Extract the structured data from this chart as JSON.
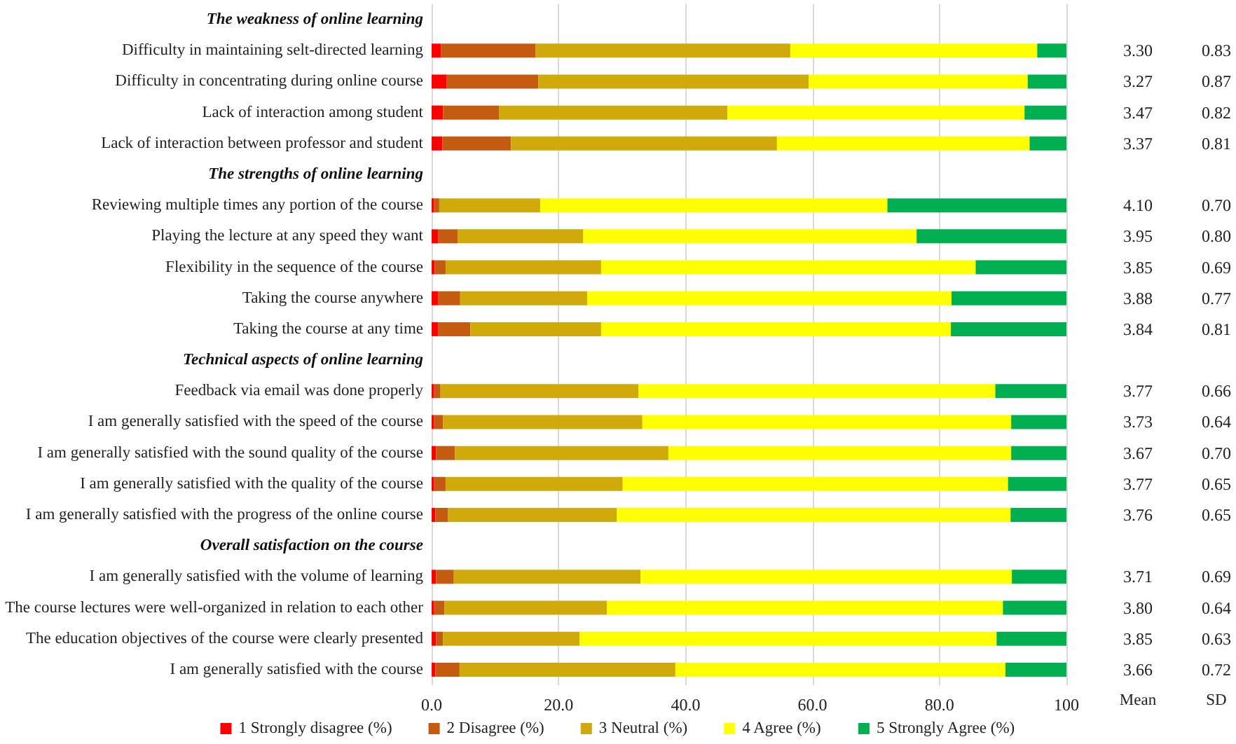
{
  "chart_data": {
    "type": "bar",
    "orientation": "horizontal",
    "stacked": true,
    "categories": [
      "The weakness of online learning",
      "Difficulty in maintaining selt-directed learning",
      "Difficulty in concentrating during online course",
      "Lack of interaction among student",
      "Lack of interaction between professor and student",
      "The strengths of online learning",
      "Reviewing multiple times any portion of the course",
      "Playing the lecture at any speed they want",
      "Flexibility in the sequence of the course",
      "Taking the course anywhere",
      "Taking the course at any time",
      "Technical aspects of online learning",
      "Feedback via email was done properly",
      "I am generally satisfied with the speed of the course",
      "I am generally satisfied with the sound quality of the course",
      "I am generally satisfied with the quality of the course",
      "I am generally satisfied with the progress of the online course",
      "Overall satisfaction on the course",
      "I am generally satisfied with the volume of learning",
      "The course lectures were well-organized in relation to each other",
      "The education objectives of the course were clearly presented",
      "I am generally satisfied with the course"
    ],
    "series": [
      {
        "name": "1 Strongly disagree (%)",
        "color": "#ff0000",
        "values": [
          null,
          1.5,
          2.4,
          1.8,
          1.7,
          null,
          0.4,
          1.0,
          0.5,
          1.0,
          1.0,
          null,
          0.4,
          0.4,
          0.7,
          0.4,
          0.6,
          null,
          0.7,
          0.4,
          0.7,
          0.6
        ]
      },
      {
        "name": "2 Disagree (%)",
        "color": "#c55a11",
        "values": [
          null,
          14.9,
          14.4,
          8.8,
          10.8,
          null,
          0.8,
          3.1,
          1.7,
          3.5,
          5.1,
          null,
          1.0,
          1.4,
          3.0,
          1.8,
          2.0,
          null,
          2.8,
          1.6,
          1.1,
          3.8
        ]
      },
      {
        "name": "3 Neutral (%)",
        "color": "#d0aa0a",
        "values": [
          null,
          40.1,
          42.6,
          36.0,
          41.9,
          null,
          15.9,
          19.8,
          24.5,
          20.0,
          20.6,
          null,
          31.2,
          31.4,
          33.6,
          27.9,
          26.6,
          null,
          29.4,
          25.6,
          21.5,
          34.0
        ]
      },
      {
        "name": "4 Agree (%)",
        "color": "#ffff00",
        "values": [
          null,
          38.9,
          34.5,
          46.8,
          39.8,
          null,
          54.7,
          52.5,
          59.0,
          57.4,
          55.1,
          null,
          56.2,
          58.1,
          54.0,
          60.7,
          62.0,
          null,
          58.5,
          62.4,
          65.7,
          52.0
        ]
      },
      {
        "name": "5 Strongly Agree (%)",
        "color": "#00b050",
        "values": [
          null,
          4.6,
          6.1,
          6.6,
          5.8,
          null,
          28.2,
          23.6,
          14.3,
          18.1,
          18.2,
          null,
          11.2,
          8.7,
          8.7,
          9.2,
          8.8,
          null,
          8.6,
          10.0,
          11.0,
          9.6
        ]
      }
    ],
    "xlim": [
      0,
      100
    ],
    "xticks": [
      {
        "value": 0,
        "label": "0.0"
      },
      {
        "value": 20,
        "label": "20.0"
      },
      {
        "value": 40,
        "label": "40.0"
      },
      {
        "value": 60,
        "label": "60.0"
      },
      {
        "value": 80,
        "label": "80.0"
      },
      100
    ],
    "grid": "x",
    "legend": "bottom",
    "annotations": [
      "Mean",
      "SD",
      "3.30",
      "0.83",
      "3.27",
      "0.87",
      "3.47",
      "0.82",
      "3.37",
      "0.81",
      "4.10",
      "0.70",
      "3.95",
      "0.80",
      "3.85",
      "0.69",
      "3.88",
      "0.77",
      "3.84",
      "0.81",
      "3.77",
      "0.66",
      "3.73",
      "0.64",
      "3.67",
      "0.70",
      "3.77",
      "0.65",
      "3.76",
      "0.65",
      "3.71",
      "0.69",
      "3.80",
      "0.64",
      "3.85",
      "0.63",
      "3.66",
      "0.72"
    ]
  }
}
